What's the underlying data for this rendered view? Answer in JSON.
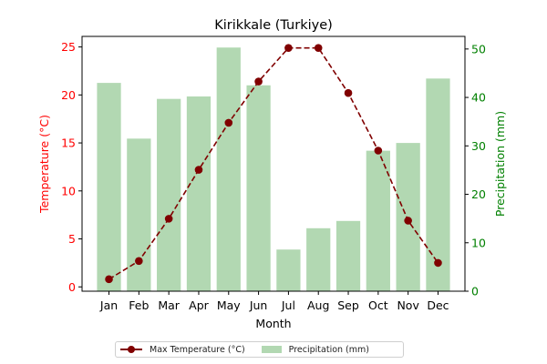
{
  "chart_data": {
    "type": "bar+line",
    "title": "Kirikkale (Turkiye)",
    "xlabel": "Month",
    "categories": [
      "Jan",
      "Feb",
      "Mar",
      "Apr",
      "May",
      "Jun",
      "Jul",
      "Aug",
      "Sep",
      "Oct",
      "Nov",
      "Dec"
    ],
    "series": [
      {
        "name": "Max Temperature (°C)",
        "kind": "line",
        "axis": "left",
        "color": "#800000",
        "line_style": "dashed",
        "marker": "circle",
        "values": [
          0.8,
          2.7,
          7.1,
          12.2,
          17.1,
          21.4,
          24.9,
          24.9,
          20.2,
          14.2,
          6.9,
          2.5
        ]
      },
      {
        "name": "Precipitation (mm)",
        "kind": "bar",
        "axis": "right",
        "color": "#b2d8b2",
        "values": [
          43.0,
          31.5,
          39.7,
          40.2,
          50.3,
          42.5,
          8.6,
          13.0,
          14.5,
          29.0,
          30.6,
          43.9
        ]
      }
    ],
    "y_left": {
      "label": "Temperature (°C)",
      "color": "#ff0000",
      "ylim": [
        -0.45,
        26.1
      ],
      "ticks": [
        0,
        5,
        10,
        15,
        20,
        25
      ]
    },
    "y_right": {
      "label": "Precipitation (mm)",
      "color": "#008000",
      "ylim": [
        0,
        52.6
      ],
      "ticks": [
        0,
        10,
        20,
        30,
        40,
        50
      ]
    },
    "grid": false,
    "legend_placement": "bottom-center (below axes)"
  }
}
